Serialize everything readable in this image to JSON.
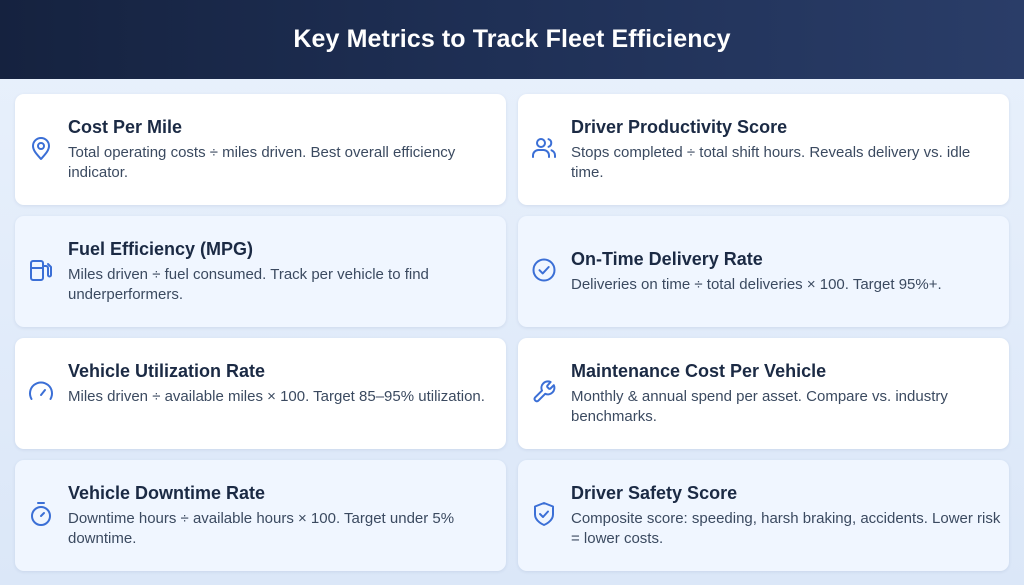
{
  "header": {
    "title": "Key Metrics to Track Fleet Efficiency"
  },
  "colors": {
    "header_bg": "#1b2a4a",
    "accent": "#3b6fd6",
    "card_bg": "#ffffff",
    "card_tint": "#f0f6ff",
    "page_bg": "#e4edf9"
  },
  "metrics": [
    {
      "title": "Cost Per Mile",
      "description": "Total operating costs ÷ miles driven. Best overall efficiency indicator.",
      "icon": "location-pin-icon"
    },
    {
      "title": "Driver Productivity Score",
      "description": "Stops completed ÷ total shift hours. Reveals delivery vs. idle time.",
      "icon": "users-icon"
    },
    {
      "title": "Fuel Efficiency (MPG)",
      "description": "Miles driven ÷ fuel consumed. Track per vehicle to find underperformers.",
      "icon": "fuel-pump-icon"
    },
    {
      "title": "On-Time Delivery Rate",
      "description": "Deliveries on time ÷ total deliveries × 100. Target 95%+.",
      "icon": "check-circle-icon"
    },
    {
      "title": "Vehicle Utilization Rate",
      "description": "Miles driven ÷ available miles × 100. Target 85–95% utilization.",
      "icon": "gauge-icon"
    },
    {
      "title": "Maintenance Cost Per Vehicle",
      "description": "Monthly & annual spend per asset. Compare vs. industry benchmarks.",
      "icon": "wrench-icon"
    },
    {
      "title": "Vehicle Downtime Rate",
      "description": "Downtime hours ÷ available hours × 100. Target under 5% downtime.",
      "icon": "stopwatch-icon"
    },
    {
      "title": "Driver Safety Score",
      "description": "Composite score: speeding, harsh braking, accidents. Lower risk = lower costs.",
      "icon": "shield-check-icon"
    }
  ]
}
